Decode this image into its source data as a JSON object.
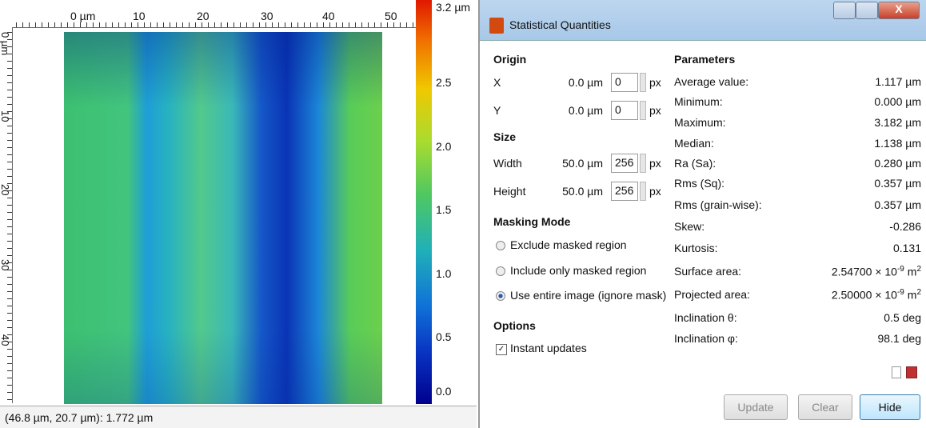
{
  "image_view": {
    "top_ruler": [
      "0 µm",
      "10",
      "20",
      "30",
      "40",
      "50"
    ],
    "left_ruler": [
      "0 µm",
      "10",
      "20",
      "30",
      "40"
    ],
    "color_scale": [
      "3.2 µm",
      "2.5",
      "2.0",
      "1.5",
      "1.0",
      "0.5",
      "0.0"
    ],
    "status": "(46.8 µm, 20.7 µm): 1.772 µm"
  },
  "dialog": {
    "title": "Statistical Quantities",
    "origin": {
      "heading": "Origin",
      "rows": [
        {
          "label": "X",
          "value": "0.0 µm",
          "input": "0",
          "unit": "px"
        },
        {
          "label": "Y",
          "value": "0.0 µm",
          "input": "0",
          "unit": "px"
        }
      ]
    },
    "size": {
      "heading": "Size",
      "rows": [
        {
          "label": "Width",
          "value": "50.0 µm",
          "input": "256",
          "unit": "px"
        },
        {
          "label": "Height",
          "value": "50.0 µm",
          "input": "256",
          "unit": "px"
        }
      ]
    },
    "masking": {
      "heading": "Masking Mode",
      "options": [
        "Exclude masked region",
        "Include only masked region",
        "Use entire image (ignore mask)"
      ]
    },
    "options": {
      "heading": "Options",
      "checkbox": "Instant updates"
    },
    "parameters": {
      "heading": "Parameters",
      "rows": [
        {
          "name": "Average value:",
          "value": "1.117 µm"
        },
        {
          "name": "Minimum:",
          "value": "0.000 µm"
        },
        {
          "name": "Maximum:",
          "value": "3.182 µm"
        },
        {
          "name": "Median:",
          "value": "1.138 µm"
        },
        {
          "name": "Ra (Sa):",
          "value": "0.280 µm"
        },
        {
          "name": "Rms (Sq):",
          "value": "0.357 µm"
        },
        {
          "name": "Rms (grain-wise):",
          "value": "0.357 µm"
        },
        {
          "name": "Skew:",
          "value": "-0.286"
        },
        {
          "name": "Kurtosis:",
          "value": "0.131"
        },
        {
          "name": "Surface area:",
          "value": {
            "base": "2.54700 × 10",
            "exp": "-9",
            "unit": " m",
            "unit_exp": "2"
          }
        },
        {
          "name": "Projected area:",
          "value": {
            "base": "2.50000 × 10",
            "exp": "-9",
            "unit": " m",
            "unit_exp": "2"
          }
        },
        {
          "name": "Inclination θ:",
          "value": "0.5 deg"
        },
        {
          "name": "Inclination φ:",
          "value": "98.1 deg"
        }
      ]
    },
    "buttons": [
      "Update",
      "Clear",
      "Hide"
    ]
  }
}
